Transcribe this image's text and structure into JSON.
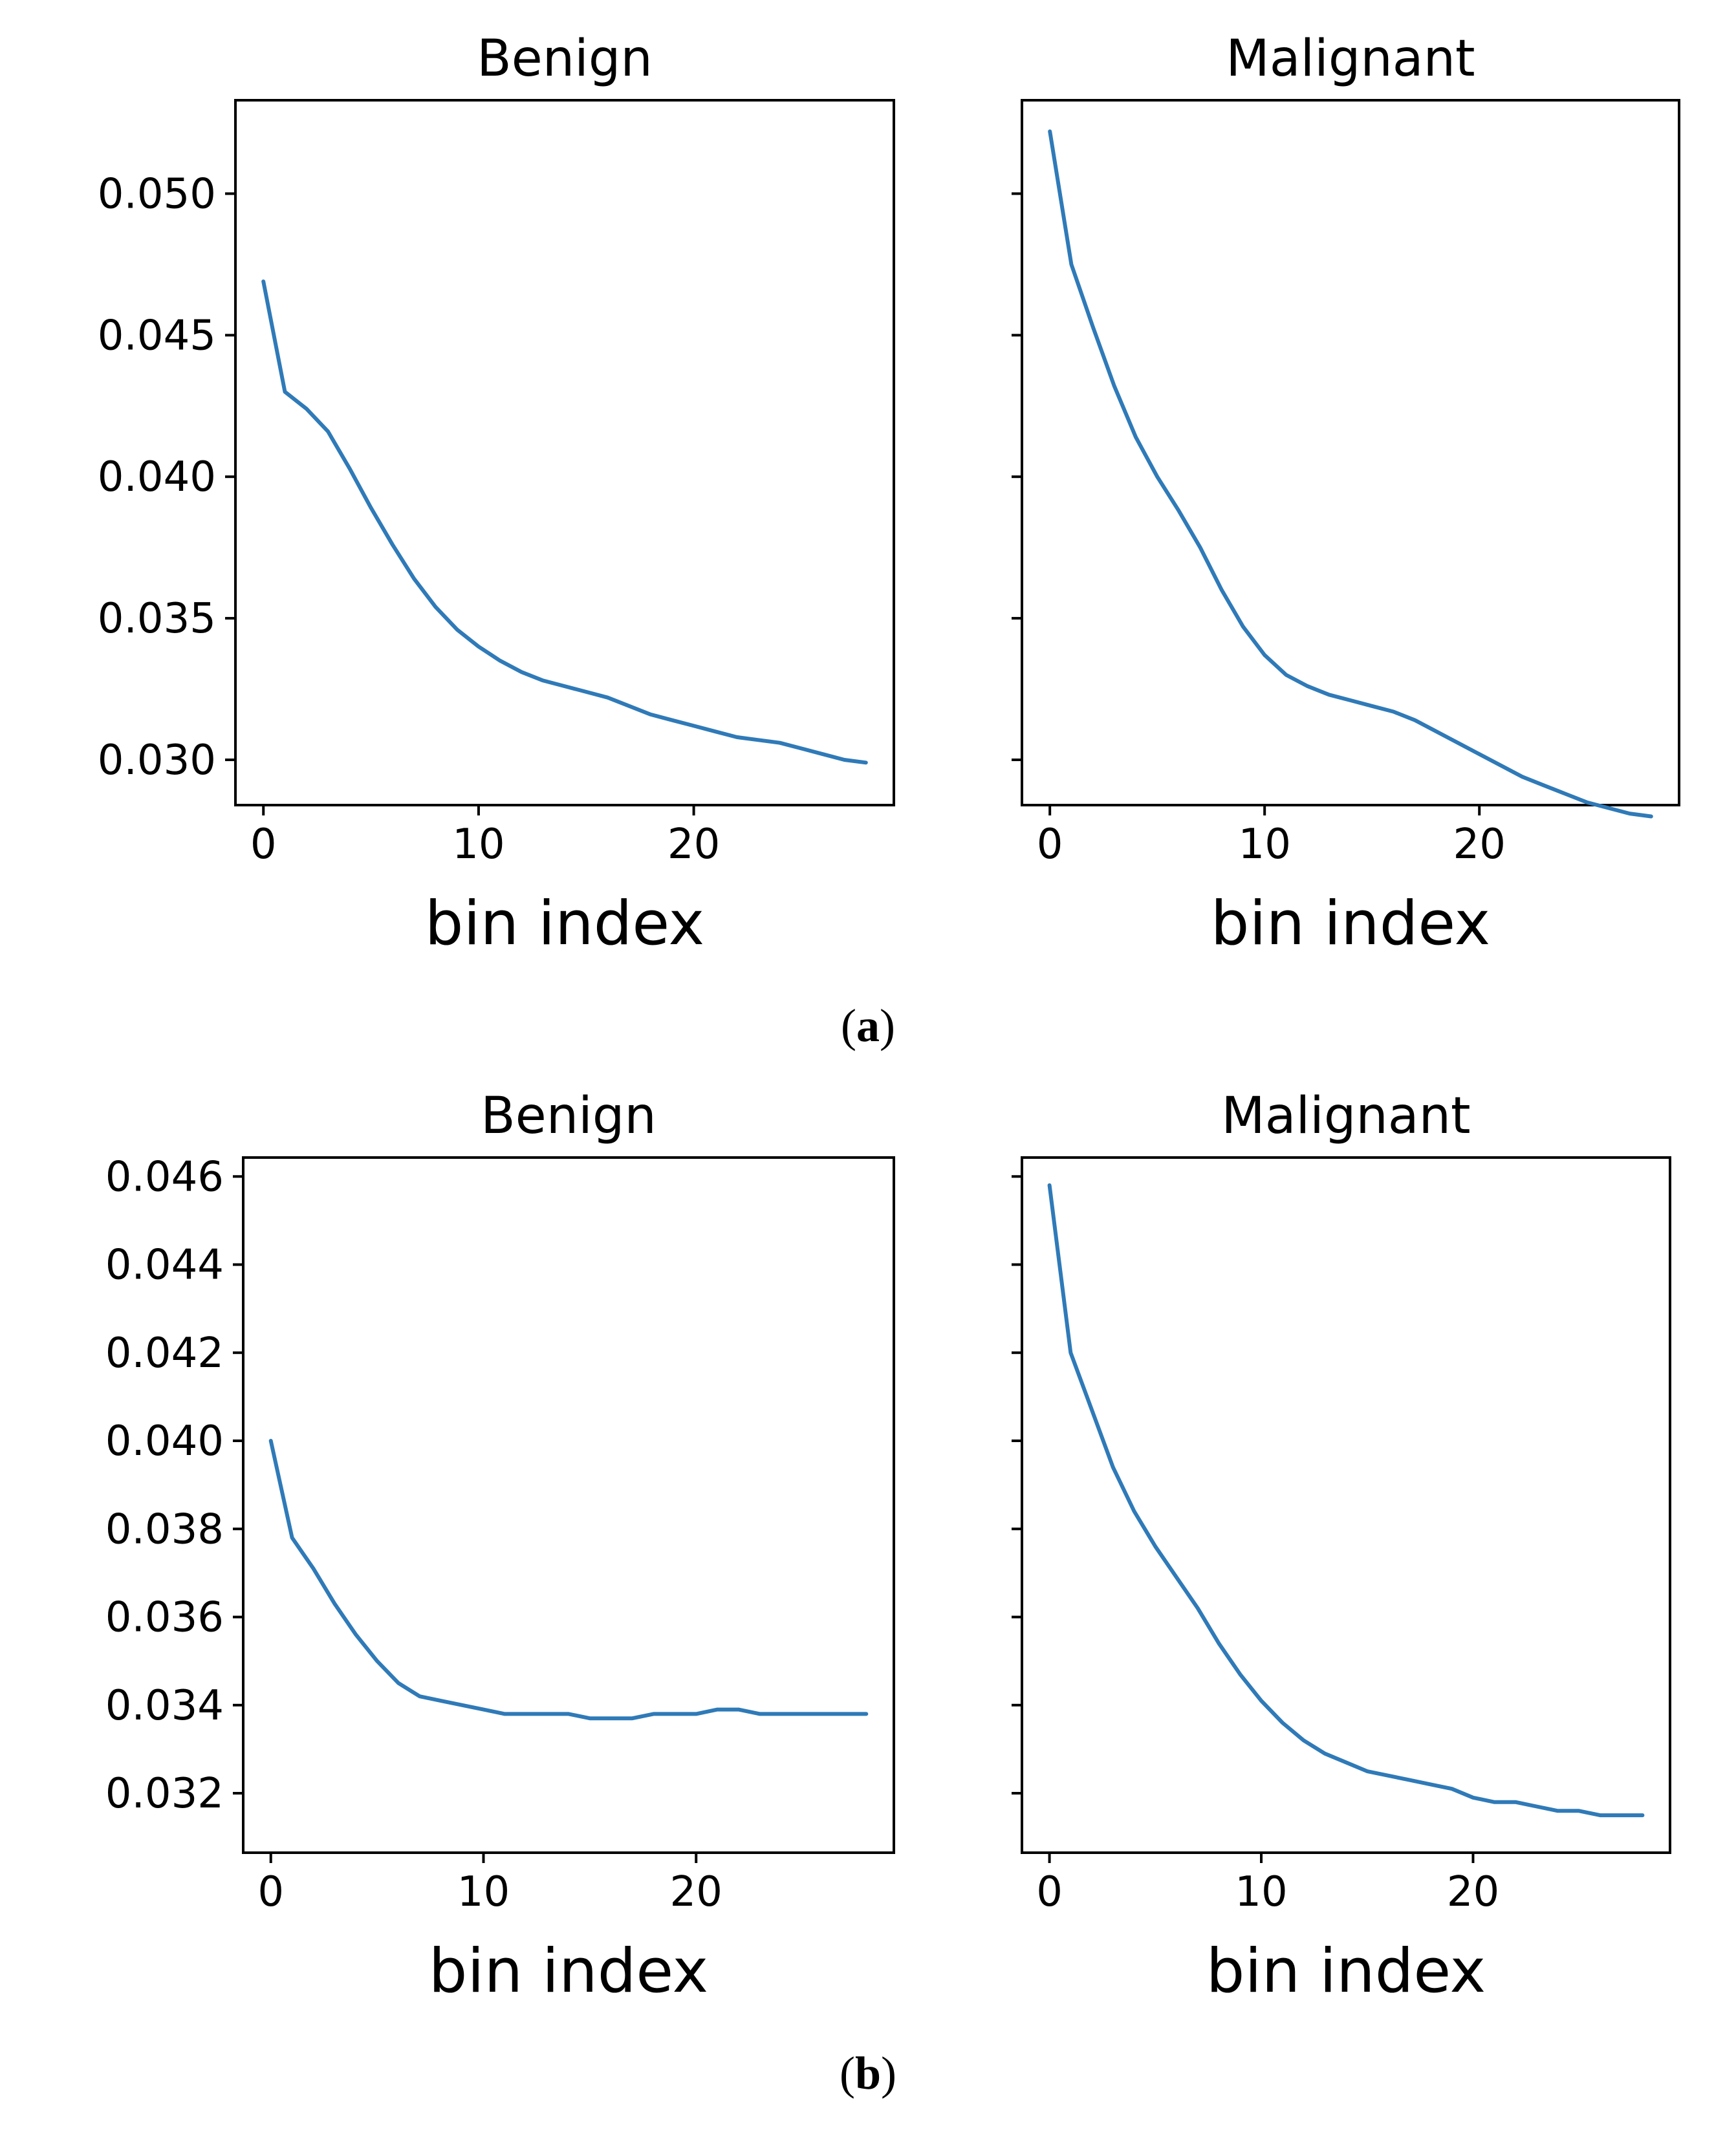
{
  "colors": {
    "series": "#2f7ab8",
    "axis": "#000000"
  },
  "captions": [
    {
      "open": "(",
      "letter": "a",
      "close": ")"
    },
    {
      "open": "(",
      "letter": "b",
      "close": ")"
    }
  ],
  "chart_data": [
    {
      "type": "line",
      "panel": "a-left",
      "title": "Benign",
      "xlabel": "bin index",
      "ylabel": "",
      "xlim": [
        -1.3,
        29.3
      ],
      "ylim": [
        0.0284,
        0.0533
      ],
      "xticks": [
        0,
        10,
        20
      ],
      "xtick_labels": [
        "0",
        "10",
        "20"
      ],
      "yticks": [
        0.03,
        0.035,
        0.04,
        0.045,
        0.05
      ],
      "ytick_labels": [
        "0.030",
        "0.035",
        "0.040",
        "0.045",
        "0.050"
      ],
      "show_ytick_labels": true,
      "legend": "none",
      "grid": false,
      "series": [
        {
          "name": "Benign",
          "x": [
            0,
            1,
            2,
            3,
            4,
            5,
            6,
            7,
            8,
            9,
            10,
            11,
            12,
            13,
            14,
            15,
            16,
            17,
            18,
            19,
            20,
            21,
            22,
            23,
            24,
            25,
            26,
            27,
            28
          ],
          "values": [
            0.0469,
            0.043,
            0.0424,
            0.0416,
            0.0403,
            0.0389,
            0.0376,
            0.0364,
            0.0354,
            0.0346,
            0.034,
            0.0335,
            0.0331,
            0.0328,
            0.0326,
            0.0324,
            0.0322,
            0.0319,
            0.0316,
            0.0314,
            0.0312,
            0.031,
            0.0308,
            0.0307,
            0.0306,
            0.0304,
            0.0302,
            0.03,
            0.0299
          ]
        }
      ]
    },
    {
      "type": "line",
      "panel": "a-right",
      "title": "Malignant",
      "xlabel": "bin index",
      "ylabel": "",
      "xlim": [
        -1.3,
        29.3
      ],
      "ylim": [
        0.0284,
        0.0533
      ],
      "xticks": [
        0,
        10,
        20
      ],
      "xtick_labels": [
        "0",
        "10",
        "20"
      ],
      "yticks": [
        0.03,
        0.035,
        0.04,
        0.045,
        0.05
      ],
      "ytick_labels": [
        "0.030",
        "0.035",
        "0.040",
        "0.045",
        "0.050"
      ],
      "show_ytick_labels": false,
      "legend": "none",
      "grid": false,
      "series": [
        {
          "name": "Malignant",
          "x": [
            0,
            1,
            2,
            3,
            4,
            5,
            6,
            7,
            8,
            9,
            10,
            11,
            12,
            13,
            14,
            15,
            16,
            17,
            18,
            19,
            20,
            21,
            22,
            23,
            24,
            25,
            26,
            27,
            28
          ],
          "values": [
            0.0522,
            0.0475,
            0.0453,
            0.0432,
            0.0414,
            0.04,
            0.0388,
            0.0375,
            0.036,
            0.0347,
            0.0337,
            0.033,
            0.0326,
            0.0323,
            0.0321,
            0.0319,
            0.0317,
            0.0314,
            0.031,
            0.0306,
            0.0302,
            0.0298,
            0.0294,
            0.0291,
            0.0288,
            0.0285,
            0.0283,
            0.0281,
            0.028
          ]
        }
      ]
    },
    {
      "type": "line",
      "panel": "b-left",
      "title": "Benign",
      "xlabel": "bin index",
      "ylabel": "",
      "xlim": [
        -1.3,
        29.3
      ],
      "ylim": [
        0.03065,
        0.04643
      ],
      "xticks": [
        0,
        10,
        20
      ],
      "xtick_labels": [
        "0",
        "10",
        "20"
      ],
      "yticks": [
        0.032,
        0.034,
        0.036,
        0.038,
        0.04,
        0.042,
        0.044,
        0.046
      ],
      "ytick_labels": [
        "0.032",
        "0.034",
        "0.036",
        "0.038",
        "0.040",
        "0.042",
        "0.044",
        "0.046"
      ],
      "show_ytick_labels": true,
      "legend": "none",
      "grid": false,
      "series": [
        {
          "name": "Benign",
          "x": [
            0,
            1,
            2,
            3,
            4,
            5,
            6,
            7,
            8,
            9,
            10,
            11,
            12,
            13,
            14,
            15,
            16,
            17,
            18,
            19,
            20,
            21,
            22,
            23,
            24,
            25,
            26,
            27,
            28
          ],
          "values": [
            0.04,
            0.0378,
            0.0371,
            0.0363,
            0.0356,
            0.035,
            0.0345,
            0.0342,
            0.0341,
            0.034,
            0.0339,
            0.0338,
            0.0338,
            0.0338,
            0.0338,
            0.0337,
            0.0337,
            0.0337,
            0.0338,
            0.0338,
            0.0338,
            0.0339,
            0.0339,
            0.0338,
            0.0338,
            0.0338,
            0.0338,
            0.0338,
            0.0338
          ]
        }
      ]
    },
    {
      "type": "line",
      "panel": "b-right",
      "title": "Malignant",
      "xlabel": "bin index",
      "ylabel": "",
      "xlim": [
        -1.3,
        29.3
      ],
      "ylim": [
        0.03065,
        0.04643
      ],
      "xticks": [
        0,
        10,
        20
      ],
      "xtick_labels": [
        "0",
        "10",
        "20"
      ],
      "yticks": [
        0.032,
        0.034,
        0.036,
        0.038,
        0.04,
        0.042,
        0.044,
        0.046
      ],
      "ytick_labels": [
        "0.032",
        "0.034",
        "0.036",
        "0.038",
        "0.040",
        "0.042",
        "0.044",
        "0.046"
      ],
      "show_ytick_labels": false,
      "legend": "none",
      "grid": false,
      "series": [
        {
          "name": "Malignant",
          "x": [
            0,
            1,
            2,
            3,
            4,
            5,
            6,
            7,
            8,
            9,
            10,
            11,
            12,
            13,
            14,
            15,
            16,
            17,
            18,
            19,
            20,
            21,
            22,
            23,
            24,
            25,
            26,
            27,
            28
          ],
          "values": [
            0.0458,
            0.042,
            0.0407,
            0.0394,
            0.0384,
            0.0376,
            0.0369,
            0.0362,
            0.0354,
            0.0347,
            0.0341,
            0.0336,
            0.0332,
            0.0329,
            0.0327,
            0.0325,
            0.0324,
            0.0323,
            0.0322,
            0.0321,
            0.0319,
            0.0318,
            0.0318,
            0.0317,
            0.0316,
            0.0316,
            0.0315,
            0.0315,
            0.0315
          ]
        }
      ]
    }
  ]
}
